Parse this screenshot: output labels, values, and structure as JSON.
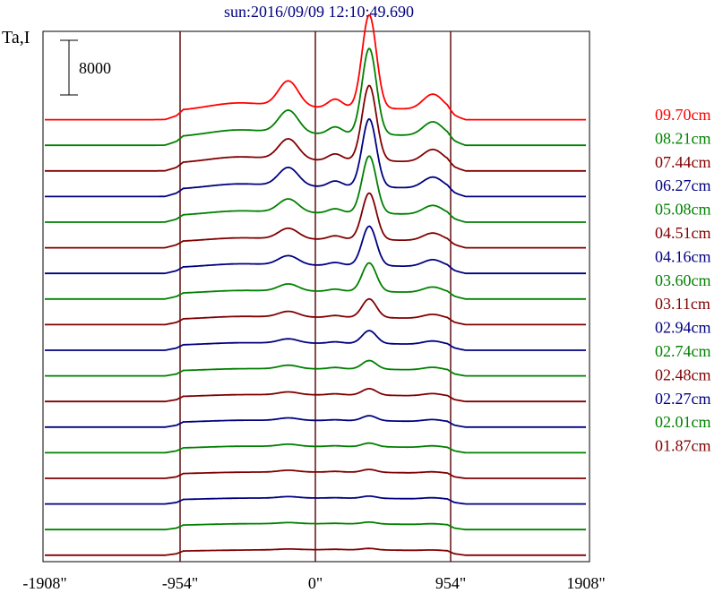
{
  "chart_data": {
    "type": "line",
    "title": "sun:2016/09/09 12:10:49.690",
    "ylabel": "Ta,I",
    "scale_bar_label": "8000",
    "xlim": [
      -1908,
      1908
    ],
    "x_ticks": [
      {
        "value": -1908,
        "label": "-1908\""
      },
      {
        "value": -954,
        "label": "-954\""
      },
      {
        "value": 0,
        "label": "0\""
      },
      {
        "value": 954,
        "label": "954\""
      },
      {
        "value": 1908,
        "label": "1908\""
      }
    ],
    "vertical_markers": [
      -954,
      0,
      954
    ],
    "series": [
      {
        "name": "09.70cm",
        "color": "#ff0000",
        "baseline": 0,
        "profile": {
          "disk": 1.7,
          "rim": 0.55,
          "peaks": [
            [
              -190,
              70,
              3.6
            ],
            [
              380,
              50,
              13.0
            ],
            [
              830,
              70,
              2.2
            ],
            [
              140,
              50,
              1.2
            ],
            [
              -550,
              200,
              0.8
            ]
          ]
        }
      },
      {
        "name": "08.21cm",
        "color": "#008000",
        "baseline": 1,
        "profile": {
          "disk": 1.6,
          "rim": 0.55,
          "peaks": [
            [
              -190,
              70,
              3.2
            ],
            [
              380,
              50,
              12.0
            ],
            [
              830,
              70,
              2.0
            ],
            [
              140,
              50,
              1.0
            ],
            [
              -550,
              200,
              0.7
            ]
          ]
        }
      },
      {
        "name": "07.44cm",
        "color": "#800000",
        "baseline": 2,
        "profile": {
          "disk": 1.5,
          "rim": 0.5,
          "peaks": [
            [
              -190,
              70,
              2.9
            ],
            [
              380,
              50,
              10.5
            ],
            [
              830,
              70,
              1.8
            ],
            [
              140,
              50,
              0.9
            ],
            [
              -550,
              200,
              0.6
            ]
          ]
        }
      },
      {
        "name": "06.27cm",
        "color": "#000080",
        "baseline": 3,
        "profile": {
          "disk": 1.4,
          "rim": 0.5,
          "peaks": [
            [
              -190,
              70,
              2.6
            ],
            [
              380,
              50,
              9.5
            ],
            [
              830,
              70,
              1.6
            ],
            [
              140,
              50,
              0.8
            ],
            [
              -550,
              200,
              0.5
            ]
          ]
        }
      },
      {
        "name": "05.08cm",
        "color": "#008000",
        "baseline": 4,
        "profile": {
          "disk": 1.3,
          "rim": 0.45,
          "peaks": [
            [
              -190,
              70,
              1.9
            ],
            [
              380,
              50,
              8.0
            ],
            [
              830,
              70,
              1.3
            ],
            [
              140,
              50,
              0.6
            ],
            [
              -550,
              200,
              0.4
            ]
          ]
        }
      },
      {
        "name": "04.51cm",
        "color": "#800000",
        "baseline": 5,
        "profile": {
          "disk": 1.2,
          "rim": 0.45,
          "peaks": [
            [
              -190,
              70,
              1.5
            ],
            [
              380,
              50,
              6.5
            ],
            [
              830,
              70,
              1.1
            ],
            [
              140,
              50,
              0.5
            ],
            [
              -550,
              200,
              0.3
            ]
          ]
        }
      },
      {
        "name": "04.16cm",
        "color": "#000080",
        "baseline": 6,
        "profile": {
          "disk": 1.15,
          "rim": 0.4,
          "peaks": [
            [
              -190,
              70,
              1.3
            ],
            [
              380,
              50,
              5.5
            ],
            [
              830,
              70,
              1.0
            ],
            [
              140,
              50,
              0.4
            ],
            [
              -550,
              200,
              0.3
            ]
          ]
        }
      },
      {
        "name": "03.60cm",
        "color": "#008000",
        "baseline": 7,
        "profile": {
          "disk": 1.1,
          "rim": 0.4,
          "peaks": [
            [
              -190,
              70,
              1.0
            ],
            [
              380,
              50,
              4.0
            ],
            [
              830,
              70,
              0.8
            ],
            [
              140,
              50,
              0.3
            ],
            [
              -550,
              200,
              0.2
            ]
          ]
        }
      },
      {
        "name": "03.11cm",
        "color": "#800000",
        "baseline": 8,
        "profile": {
          "disk": 1.05,
          "rim": 0.35,
          "peaks": [
            [
              -190,
              70,
              0.8
            ],
            [
              380,
              50,
              2.6
            ],
            [
              830,
              70,
              0.6
            ],
            [
              140,
              50,
              0.25
            ],
            [
              -550,
              200,
              0.2
            ]
          ]
        }
      },
      {
        "name": "02.94cm",
        "color": "#000080",
        "baseline": 9,
        "profile": {
          "disk": 1.0,
          "rim": 0.35,
          "peaks": [
            [
              -190,
              70,
              0.6
            ],
            [
              380,
              50,
              1.8
            ],
            [
              830,
              70,
              0.5
            ],
            [
              140,
              50,
              0.2
            ],
            [
              -550,
              200,
              0.15
            ]
          ]
        }
      },
      {
        "name": "02.74cm",
        "color": "#008000",
        "baseline": 10,
        "profile": {
          "disk": 1.0,
          "rim": 0.3,
          "peaks": [
            [
              -190,
              70,
              0.5
            ],
            [
              380,
              50,
              1.2
            ],
            [
              830,
              70,
              0.4
            ],
            [
              140,
              50,
              0.2
            ],
            [
              -550,
              200,
              0.1
            ]
          ]
        }
      },
      {
        "name": "02.48cm",
        "color": "#800000",
        "baseline": 11,
        "profile": {
          "disk": 0.95,
          "rim": 0.3,
          "peaks": [
            [
              -190,
              70,
              0.4
            ],
            [
              380,
              50,
              0.9
            ],
            [
              830,
              70,
              0.35
            ],
            [
              140,
              50,
              0.15
            ],
            [
              -550,
              200,
              0.1
            ]
          ]
        }
      },
      {
        "name": "02.27cm",
        "color": "#000080",
        "baseline": 12,
        "profile": {
          "disk": 0.95,
          "rim": 0.3,
          "peaks": [
            [
              -190,
              70,
              0.35
            ],
            [
              380,
              50,
              0.7
            ],
            [
              830,
              70,
              0.3
            ],
            [
              140,
              50,
              0.1
            ],
            [
              -550,
              200,
              0.1
            ]
          ]
        }
      },
      {
        "name": "02.01cm",
        "color": "#008000",
        "baseline": 13,
        "profile": {
          "disk": 0.9,
          "rim": 0.3,
          "peaks": [
            [
              -190,
              70,
              0.3
            ],
            [
              380,
              50,
              0.5
            ],
            [
              830,
              70,
              0.25
            ],
            [
              140,
              50,
              0.1
            ],
            [
              -550,
              200,
              0.1
            ]
          ]
        }
      },
      {
        "name": "01.87cm",
        "color": "#800000",
        "baseline": 14,
        "profile": {
          "disk": 0.9,
          "rim": 0.25,
          "peaks": [
            [
              -190,
              70,
              0.25
            ],
            [
              380,
              50,
              0.4
            ],
            [
              830,
              70,
              0.2
            ],
            [
              140,
              50,
              0.1
            ],
            [
              -550,
              200,
              0.05
            ]
          ]
        }
      },
      {
        "name": "",
        "color": "#000080",
        "baseline": 15,
        "profile": {
          "disk": 0.85,
          "rim": 0.25,
          "peaks": [
            [
              -190,
              70,
              0.2
            ],
            [
              380,
              50,
              0.3
            ],
            [
              830,
              70,
              0.2
            ],
            [
              140,
              50,
              0.05
            ],
            [
              -550,
              200,
              0.05
            ]
          ]
        }
      },
      {
        "name": "",
        "color": "#008000",
        "baseline": 16,
        "profile": {
          "disk": 0.85,
          "rim": 0.25,
          "peaks": [
            [
              -190,
              70,
              0.15
            ],
            [
              380,
              50,
              0.25
            ],
            [
              830,
              70,
              0.15
            ],
            [
              140,
              50,
              0.05
            ],
            [
              -550,
              200,
              0.05
            ]
          ]
        }
      },
      {
        "name": "",
        "color": "#800000",
        "baseline": 17,
        "profile": {
          "disk": 0.8,
          "rim": 0.25,
          "peaks": [
            [
              -190,
              70,
              0.1
            ],
            [
              380,
              50,
              0.2
            ],
            [
              830,
              70,
              0.1
            ],
            [
              140,
              50,
              0.05
            ],
            [
              -550,
              200,
              0.0
            ]
          ]
        }
      }
    ]
  }
}
